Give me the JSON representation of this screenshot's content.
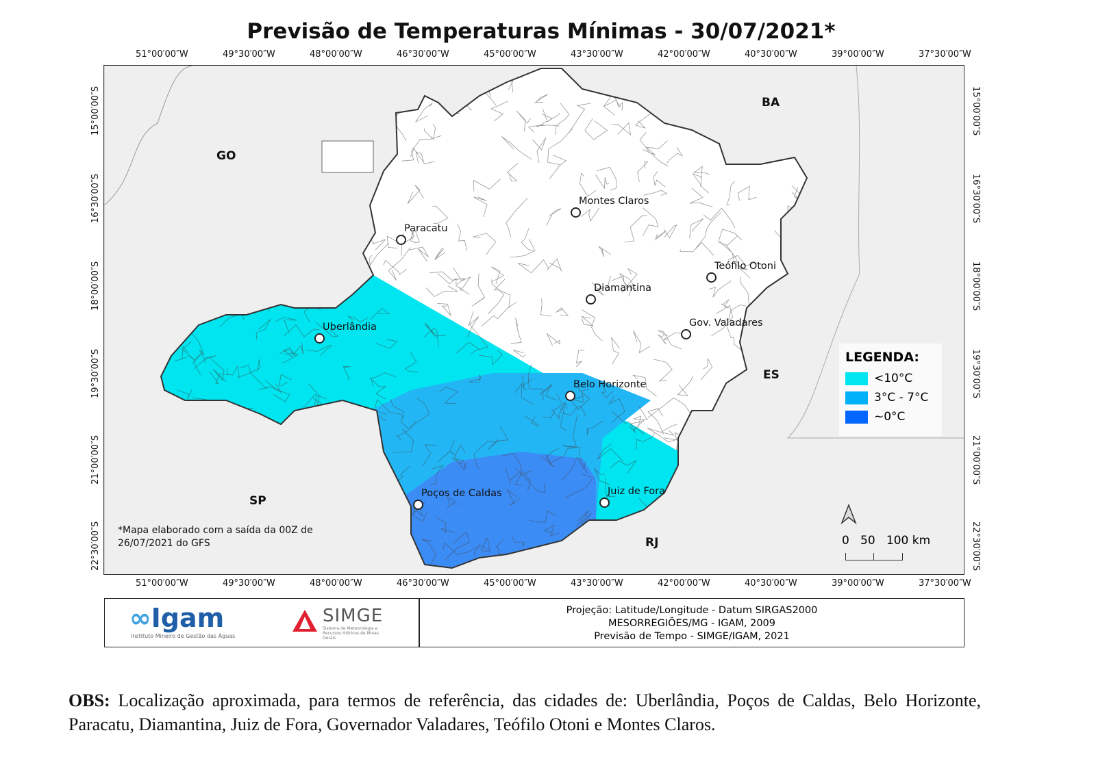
{
  "title": "Previsão de Temperaturas Mínimas - 30/07/2021*",
  "lon_ticks": [
    "51°00′00″W",
    "49°30′00″W",
    "48°00′00″W",
    "46°30′00″W",
    "45°00′00″W",
    "43°30′00″W",
    "42°00′00″W",
    "40°30′00″W",
    "39°00′00″W",
    "37°30′00″W"
  ],
  "lat_ticks": [
    "15°00′00″S",
    "16°30′00″S",
    "18°00′00″S",
    "19°30′00″S",
    "21°00′00″S",
    "22°30′00″S"
  ],
  "states": {
    "go": "GO",
    "ba": "BA",
    "es": "ES",
    "sp": "SP",
    "rj": "RJ"
  },
  "cities": {
    "montes_claros": "Montes Claros",
    "paracatu": "Paracatu",
    "teofilo_otoni": "Teófilo Otoni",
    "diamantina": "Diamantina",
    "gov_valadares": "Gov. Valadares",
    "uberlandia": "Uberlândia",
    "belo_horizonte": "Belo Horizonte",
    "pocos_de_caldas": "Poços de Caldas",
    "juiz_de_fora": "Juiz de Fora"
  },
  "legend": {
    "title": "LEGENDA:",
    "items": [
      {
        "label": "<10°C",
        "color": "#00e5f0"
      },
      {
        "label": "3°C - 7°C",
        "color": "#00b0f8"
      },
      {
        "label": "~0°C",
        "color": "#0066ff"
      }
    ]
  },
  "scale": {
    "l0": "0",
    "l1": "50",
    "l2": "100 km"
  },
  "note": "*Mapa elaborado com a saída da 00Z de 26/07/2021 do GFS",
  "logos": {
    "igam": "Igam",
    "igam_sub": "Instituto Mineiro de Gestão das Águas",
    "simge": "SIMGE",
    "simge_sub": "Sistema de Meteorologia e Recursos Hídricos de Minas Gerais"
  },
  "credits": [
    "Projeção: Latitude/Longitude - Datum SIRGAS2000",
    "MESORREGIÕES/MG - IGAM, 2009",
    "Previsão de Tempo - SIMGE/IGAM, 2021"
  ],
  "obs": {
    "label": "OBS:",
    "text": " Localização aproximada, para termos de referência, das cidades de: Uberlândia, Poços de Caldas, Belo Horizonte, Paracatu, Diamantina, Juiz de Fora, Governador Valadares, Teófilo Otoni e Montes Claros."
  }
}
